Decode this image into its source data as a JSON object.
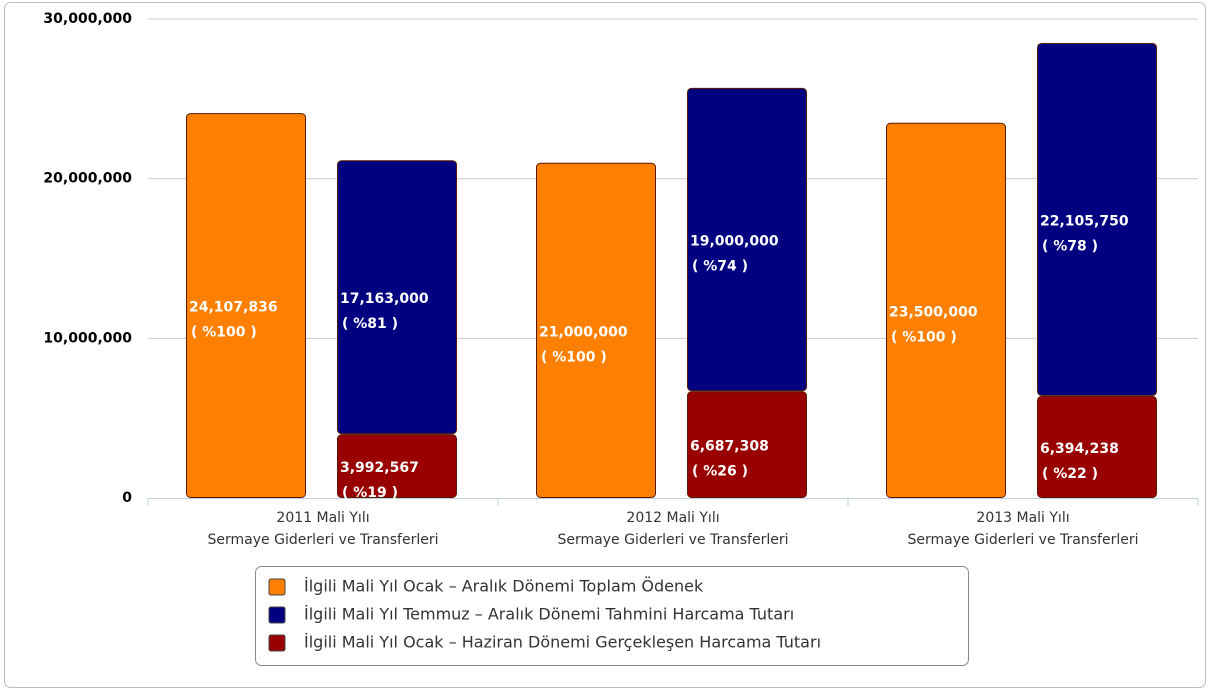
{
  "chart_data": {
    "type": "bar",
    "categories": [
      [
        "2011 Mali Yılı",
        "Sermaye Giderleri ve Transferleri"
      ],
      [
        "2012 Mali Yılı",
        "Sermaye Giderleri ve Transferleri"
      ],
      [
        "2013 Mali Yılı",
        "Sermaye Giderleri ve Transferleri"
      ]
    ],
    "series": [
      {
        "name": "İlgili Mali Yıl Ocak – Aralık Dönemi Toplam Ödenek",
        "color": "#ff8000",
        "stack": "a",
        "values": [
          24107836,
          21000000,
          23500000
        ],
        "value_labels": [
          "24,107,836",
          "21,000,000",
          "23,500,000"
        ],
        "percents": [
          100,
          100,
          100
        ],
        "percent_labels": [
          "( %100 )",
          "( %100 )",
          "( %100 )"
        ]
      },
      {
        "name": "İlgili Mali Yıl Temmuz – Aralık Dönemi Tahmini Harcama Tutarı",
        "color": "#000080",
        "stack": "b",
        "values": [
          17163000,
          19000000,
          22105750
        ],
        "value_labels": [
          "17,163,000",
          "19,000,000",
          "22,105,750"
        ],
        "percents": [
          81,
          74,
          78
        ],
        "percent_labels": [
          "( %81 )",
          "( %74 )",
          "( %78 )"
        ]
      },
      {
        "name": "İlgili Mali Yıl Ocak – Haziran Dönemi Gerçekleşen Harcama Tutarı",
        "color": "#990000",
        "stack": "b",
        "values": [
          3992567,
          6687308,
          6394238
        ],
        "value_labels": [
          "3,992,567",
          "6,687,308",
          "6,394,238"
        ],
        "percents": [
          19,
          26,
          22
        ],
        "percent_labels": [
          "( %19 )",
          "( %26 )",
          "( %22 )"
        ]
      }
    ],
    "ylim": [
      0,
      30000000
    ],
    "yticks": [
      0,
      {
        "value": 10000000,
        "label": "10,000,000"
      },
      {
        "value": 20000000,
        "label": "20,000,000"
      },
      {
        "value": 30000000,
        "label": "30,000,000"
      }
    ],
    "grid": true
  }
}
